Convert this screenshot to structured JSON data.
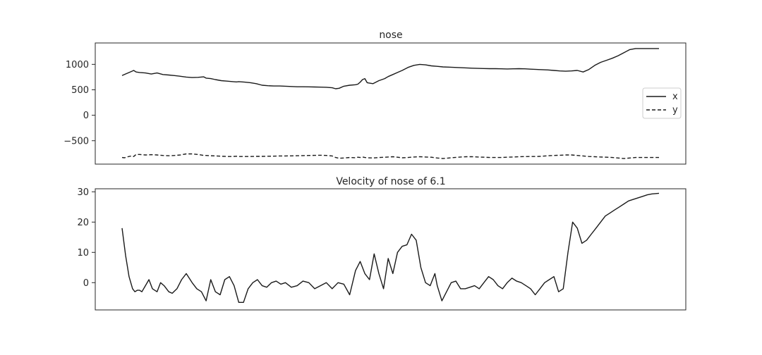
{
  "chart_data": [
    {
      "type": "line",
      "title": "nose",
      "xlabel": "",
      "ylabel": "",
      "ylim": [
        -960,
        1420
      ],
      "yticks": [
        1000,
        500,
        0,
        -500
      ],
      "ytick_labels": [
        "1000",
        "500",
        "0",
        "−500"
      ],
      "xticks_visible": false,
      "grid": false,
      "legend": "center-right",
      "x": [
        0,
        2,
        5,
        8,
        10,
        12,
        15,
        20,
        25,
        30,
        35,
        40,
        45,
        50,
        55,
        60,
        65,
        70,
        72,
        76,
        80,
        85,
        90,
        95,
        98,
        100,
        105,
        110,
        115,
        120,
        125,
        130,
        135,
        140,
        145,
        150,
        155,
        160,
        165,
        170,
        175,
        180,
        183,
        186,
        190,
        195,
        200,
        202,
        204,
        206,
        208,
        210,
        215,
        220,
        225,
        228,
        232,
        236,
        240,
        245,
        250,
        255,
        260,
        265,
        270,
        275,
        280,
        285,
        290,
        295,
        300,
        305,
        310,
        315,
        320,
        325,
        330,
        335,
        340,
        345,
        350,
        355,
        360,
        365,
        370,
        375,
        380,
        385,
        390,
        395,
        400,
        405,
        410,
        415,
        420,
        425,
        430,
        435,
        440,
        445,
        450,
        455,
        460
      ],
      "series": [
        {
          "name": "x",
          "style": "solid",
          "values": [
            780,
            800,
            830,
            860,
            880,
            850,
            840,
            830,
            810,
            830,
            800,
            790,
            780,
            765,
            750,
            740,
            745,
            755,
            730,
            720,
            700,
            680,
            670,
            660,
            655,
            660,
            650,
            640,
            620,
            590,
            580,
            575,
            575,
            570,
            565,
            560,
            560,
            558,
            555,
            553,
            550,
            540,
            520,
            530,
            570,
            590,
            600,
            610,
            650,
            700,
            720,
            640,
            620,
            680,
            720,
            760,
            800,
            840,
            880,
            940,
            980,
            1000,
            990,
            970,
            960,
            950,
            945,
            940,
            935,
            930,
            925,
            920,
            918,
            915,
            915,
            912,
            910,
            912,
            915,
            912,
            905,
            900,
            895,
            890,
            880,
            870,
            865,
            870,
            880,
            850,
            900,
            980,
            1040,
            1080,
            1120,
            1170,
            1230,
            1290,
            1310,
            1310,
            1310,
            1310,
            1310
          ]
        },
        {
          "name": "y",
          "style": "dashed",
          "values": [
            -830,
            -835,
            -815,
            -800,
            -810,
            -770,
            -770,
            -780,
            -775,
            -780,
            -790,
            -795,
            -790,
            -780,
            -760,
            -760,
            -770,
            -790,
            -790,
            -795,
            -800,
            -805,
            -810,
            -810,
            -805,
            -810,
            -810,
            -810,
            -808,
            -808,
            -805,
            -803,
            -800,
            -800,
            -798,
            -795,
            -793,
            -790,
            -788,
            -785,
            -790,
            -800,
            -830,
            -845,
            -840,
            -830,
            -835,
            -825,
            -830,
            -820,
            -830,
            -835,
            -840,
            -830,
            -825,
            -820,
            -815,
            -825,
            -835,
            -830,
            -820,
            -815,
            -820,
            -825,
            -840,
            -850,
            -840,
            -830,
            -820,
            -815,
            -815,
            -820,
            -825,
            -830,
            -830,
            -830,
            -825,
            -820,
            -815,
            -812,
            -810,
            -810,
            -805,
            -795,
            -790,
            -785,
            -780,
            -780,
            -790,
            -800,
            -810,
            -815,
            -820,
            -825,
            -830,
            -840,
            -850,
            -840,
            -830,
            -830,
            -830,
            -830,
            -830
          ]
        }
      ]
    },
    {
      "type": "line",
      "title": "Velocity of nose of 6.1",
      "xlabel": "",
      "ylabel": "",
      "ylim": [
        -9,
        31
      ],
      "yticks": [
        30,
        20,
        10,
        0
      ],
      "ytick_labels": [
        "30",
        "20",
        "10",
        "0"
      ],
      "xticks_visible": false,
      "grid": false,
      "x": [
        0,
        3,
        6,
        9,
        11,
        13,
        15,
        17,
        20,
        23,
        26,
        30,
        33,
        36,
        40,
        43,
        47,
        51,
        55,
        60,
        64,
        68,
        72,
        76,
        80,
        84,
        88,
        92,
        96,
        100,
        104,
        108,
        112,
        116,
        120,
        124,
        128,
        132,
        136,
        140,
        145,
        150,
        155,
        160,
        165,
        170,
        175,
        180,
        185,
        190,
        195,
        200,
        204,
        208,
        212,
        216,
        220,
        224,
        228,
        232,
        236,
        240,
        244,
        248,
        252,
        256,
        260,
        264,
        268,
        270,
        274,
        278,
        282,
        286,
        290,
        294,
        298,
        302,
        306,
        310,
        314,
        318,
        322,
        326,
        330,
        334,
        338,
        342,
        346,
        350,
        354,
        358,
        362,
        366,
        370,
        374,
        378,
        382,
        386,
        390,
        394,
        398,
        402,
        406,
        410,
        414,
        418,
        422,
        426,
        430,
        434,
        438,
        442,
        446,
        450,
        454,
        460
      ],
      "series": [
        {
          "name": "",
          "style": "solid",
          "values": [
            18,
            9,
            2,
            -2,
            -3,
            -2.5,
            -2.5,
            -3,
            -1,
            1,
            -2,
            -3,
            0,
            -1,
            -3,
            -3.5,
            -2,
            1,
            3,
            0,
            -2,
            -3,
            -6,
            1,
            -3,
            -4,
            1,
            2,
            -1,
            -6.5,
            -6.5,
            -2,
            0,
            1,
            -1,
            -1.5,
            0,
            0.5,
            -0.5,
            0,
            -1.5,
            -1,
            0.5,
            0,
            -2,
            -1,
            0,
            -2,
            0,
            -0.5,
            -4,
            4,
            7,
            3,
            1,
            9.5,
            3,
            -2,
            8,
            3,
            10,
            12,
            12.5,
            16,
            14,
            5,
            0,
            -1,
            3,
            -1,
            -6,
            -3,
            0,
            0.5,
            -2,
            -2,
            -1.5,
            -1,
            -2,
            0,
            2,
            1,
            -1,
            -2,
            0,
            1.5,
            0.5,
            0,
            -1,
            -2,
            -4,
            -2,
            0,
            1,
            2,
            -3,
            -2,
            10,
            20,
            18,
            13,
            14,
            16,
            18,
            20,
            22,
            23,
            24,
            25,
            26,
            27,
            27.5,
            28,
            28.5,
            29,
            29.3,
            29.5
          ]
        }
      ]
    }
  ]
}
